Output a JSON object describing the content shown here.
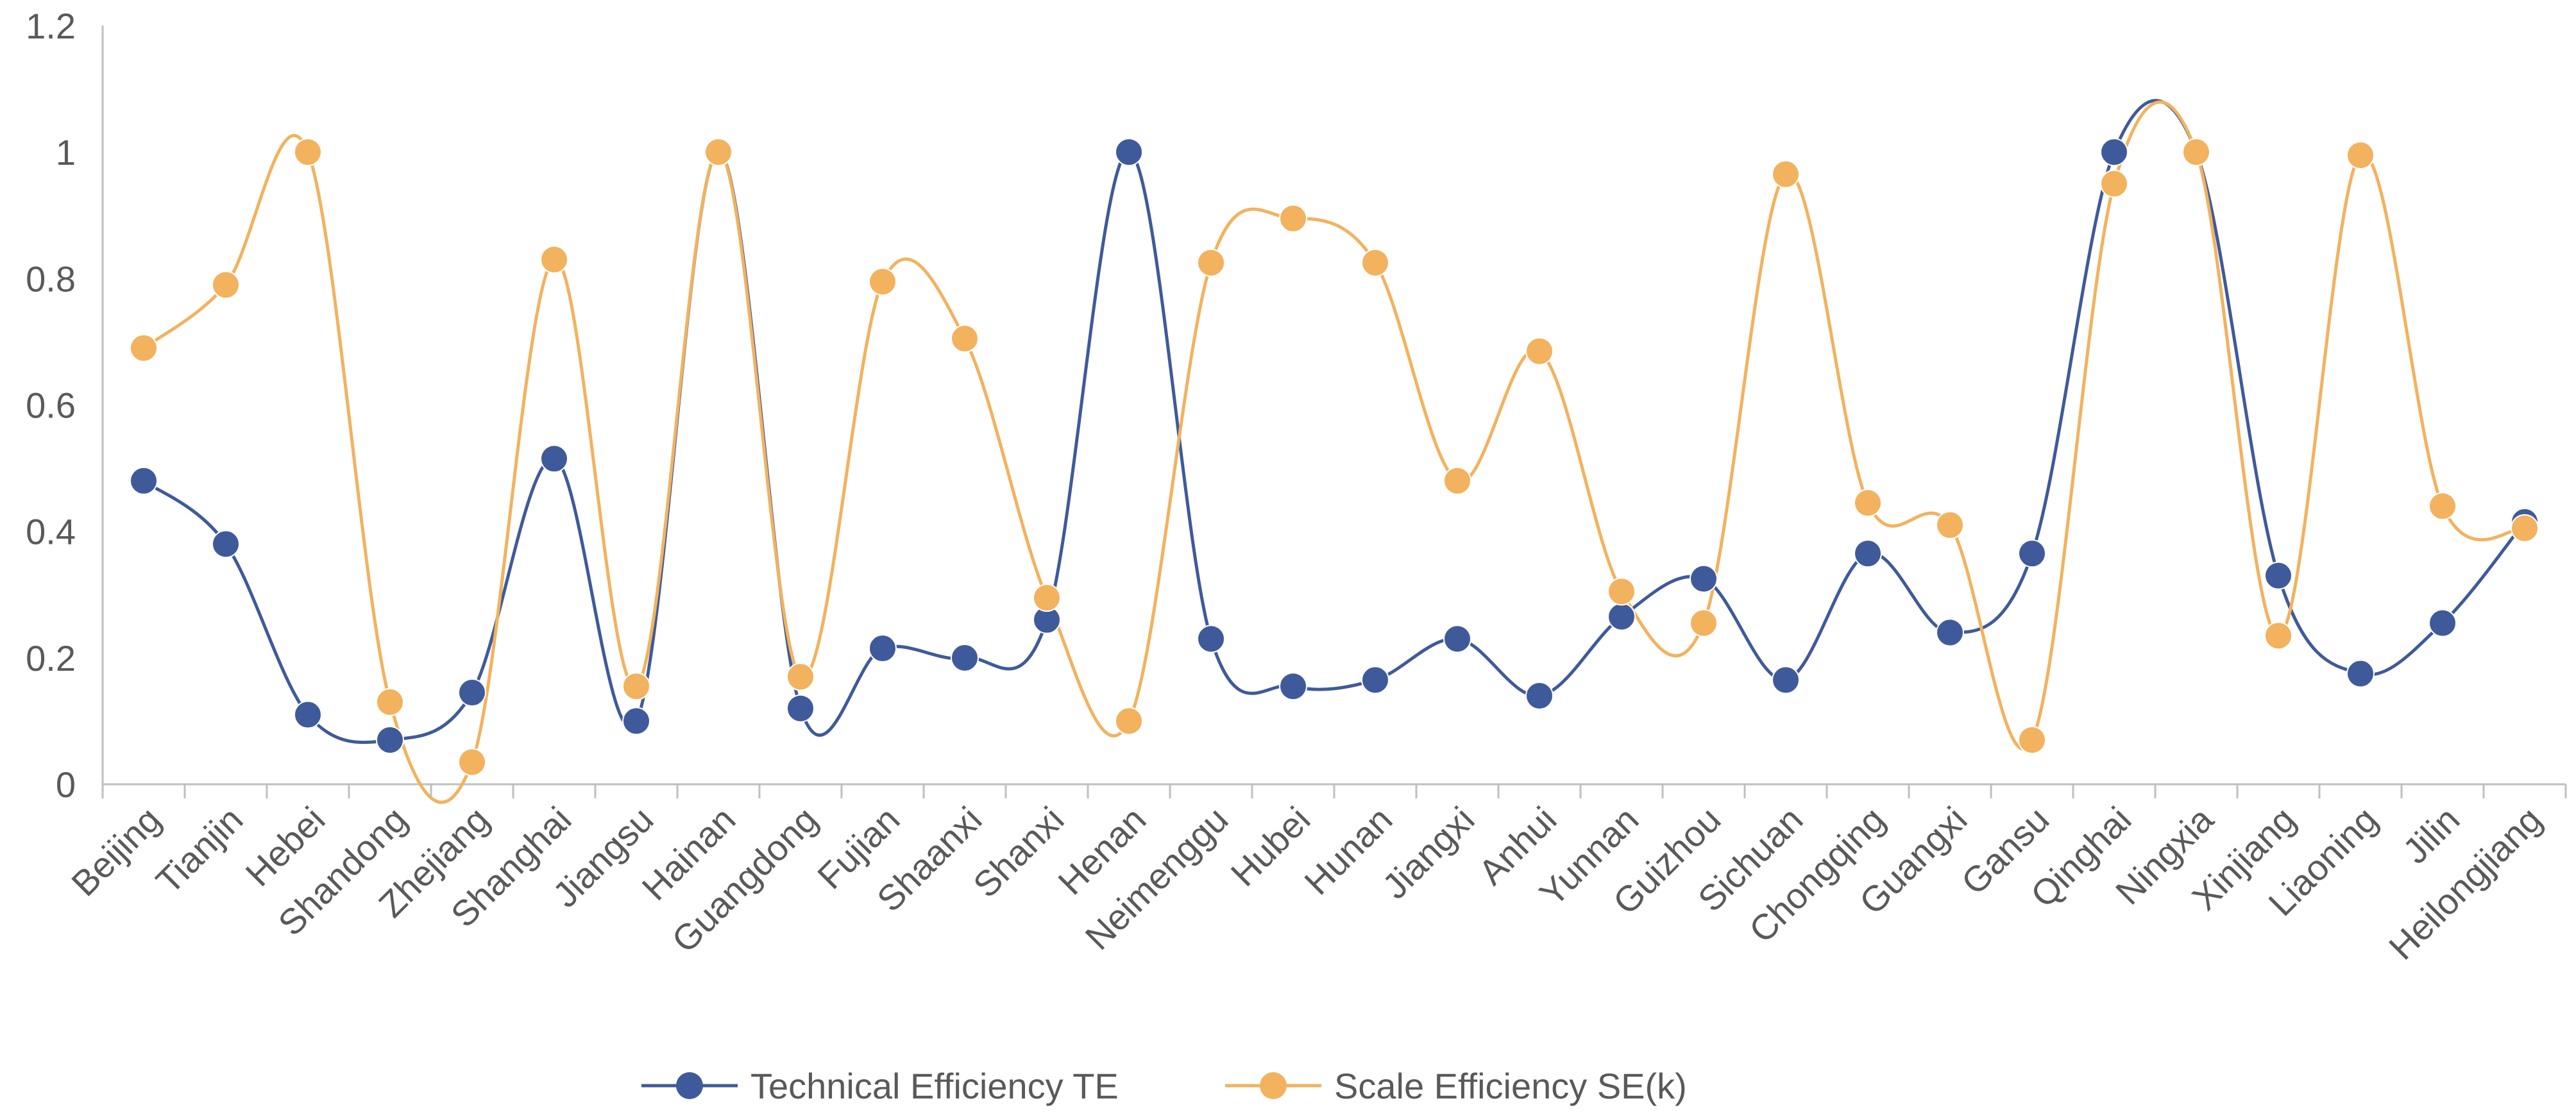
{
  "chart_data": {
    "type": "line",
    "smooth": true,
    "title": "",
    "xlabel": "",
    "ylabel": "",
    "ylim": [
      0,
      1.2
    ],
    "yticks": [
      "0",
      "0.2",
      "0.4",
      "0.6",
      "0.8",
      "1",
      "1.2"
    ],
    "categories": [
      "Beijing",
      "Tianjin",
      "Hebei",
      "Shandong",
      "Zhejiang",
      "Shanghai",
      "Jiangsu",
      "Hainan",
      "Guangdong",
      "Fujian",
      "Shaanxi",
      "Shanxi",
      "Henan",
      "Neimenggu",
      "Hubei",
      "Hunan",
      "Jiangxi",
      "Anhui",
      "Yunnan",
      "Guizhou",
      "Sichuan",
      "Chongqing",
      "Guangxi",
      "Gansu",
      "Qinghai",
      "Ningxia",
      "Xinjiang",
      "Liaoning",
      "Jilin",
      "Heilongjiang"
    ],
    "series": [
      {
        "name": "Technical Efficiency TE",
        "color": "#3F5A9A",
        "values": [
          0.48,
          0.38,
          0.11,
          0.07,
          0.145,
          0.515,
          0.1,
          1.0,
          0.12,
          0.215,
          0.2,
          0.26,
          1.0,
          0.23,
          0.155,
          0.165,
          0.23,
          0.14,
          0.265,
          0.325,
          0.165,
          0.365,
          0.24,
          0.365,
          1.0,
          1.0,
          0.33,
          0.175,
          0.255,
          0.415
        ]
      },
      {
        "name": "Scale Efficiency SE(k)",
        "color": "#F2B25E",
        "values": [
          0.69,
          0.79,
          1.0,
          0.13,
          0.035,
          0.83,
          0.155,
          1.0,
          0.17,
          0.795,
          0.705,
          0.295,
          0.1,
          0.825,
          0.895,
          0.825,
          0.48,
          0.685,
          0.305,
          0.255,
          0.965,
          0.445,
          0.41,
          0.07,
          0.95,
          1.0,
          0.235,
          0.995,
          0.44,
          0.405
        ]
      }
    ],
    "legend": "bottom",
    "grid": false
  }
}
